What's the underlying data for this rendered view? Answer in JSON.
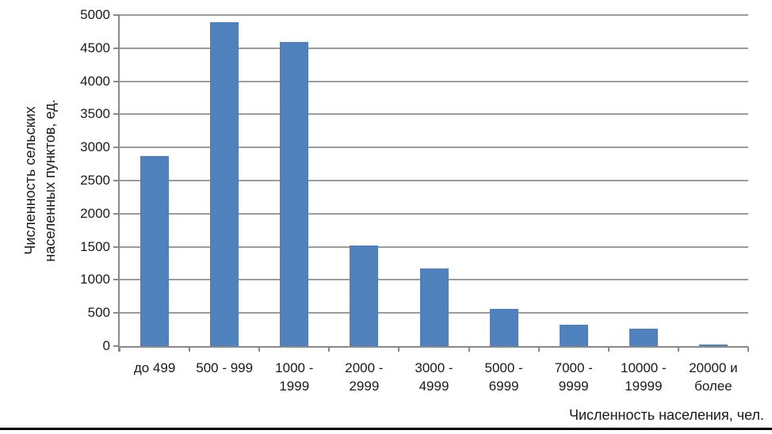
{
  "chart_data": {
    "type": "bar",
    "title": "",
    "categories": [
      "до 499",
      "500 - 999",
      "1000 -\n1999",
      "2000 -\n2999",
      "3000 -\n4999",
      "5000 -\n6999",
      "7000 -\n9999",
      "10000 -\n19999",
      "20000 и\nболее"
    ],
    "values": [
      2870,
      4890,
      4590,
      1520,
      1170,
      560,
      320,
      260,
      30
    ],
    "xlabel": "Численность населения, чел.",
    "ylabel": "Численность сельских\nнаселенных пунктов, ед.",
    "ylim": [
      0,
      5000
    ],
    "yticks": [
      0,
      500,
      1000,
      1500,
      2000,
      2500,
      3000,
      3500,
      4000,
      4500,
      5000
    ],
    "grid": true,
    "legend_position": "none",
    "colors": {
      "bar": "#4F81BD",
      "gridline": "#9C9C9C",
      "axis": "#898989",
      "text": "#1a1a1a",
      "bottom_rule": "#000000"
    }
  }
}
